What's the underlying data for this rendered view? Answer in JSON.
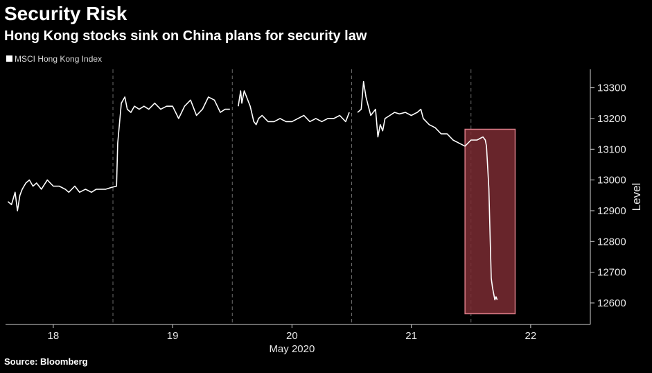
{
  "header": {
    "title": "Security Risk",
    "subtitle": "Hong Kong stocks sink on China plans for security law"
  },
  "footer": {
    "source": "Source: Bloomberg"
  },
  "colors": {
    "background": "#000000",
    "line": "#ffffff",
    "highlight_fill": "#7a2c33",
    "highlight_stroke": "#d87b86",
    "grid": "#6a6a6a"
  },
  "chart_data": {
    "type": "line",
    "legend": {
      "entries": [
        "MSCI Hong Kong Index"
      ],
      "placement": "top-left"
    },
    "xlabel": "May 2020",
    "ylabel": "Level",
    "x_tick_labels": [
      "18",
      "19",
      "20",
      "21",
      "22"
    ],
    "y_ticks": [
      12600,
      12700,
      12800,
      12900,
      13000,
      13100,
      13200,
      13300
    ],
    "ylim": [
      12530,
      13360
    ],
    "xlim": [
      17.6,
      22.5
    ],
    "grid": {
      "x": "dashed-vertical",
      "y": false
    },
    "highlight": {
      "x_range": [
        21.45,
        21.87
      ],
      "y_range": [
        12565,
        13165
      ]
    },
    "series": [
      {
        "name": "MSCI Hong Kong Index",
        "x": [
          17.62,
          17.65,
          17.68,
          17.7,
          17.72,
          17.74,
          17.77,
          17.8,
          17.83,
          17.86,
          17.9,
          17.95,
          18.0,
          18.05,
          18.1,
          18.13,
          18.18,
          18.22,
          18.27,
          18.32,
          18.36,
          18.4,
          18.44,
          18.48,
          18.53,
          18.54,
          18.57,
          18.6,
          18.62,
          18.65,
          18.68,
          18.72,
          18.76,
          18.8,
          18.85,
          18.9,
          18.95,
          19.0,
          19.05,
          19.1,
          19.15,
          19.2,
          19.25,
          19.3,
          19.35,
          19.4,
          19.44,
          19.48,
          19.55,
          19.57,
          19.58,
          19.6,
          19.62,
          19.65,
          19.68,
          19.7,
          19.72,
          19.75,
          19.8,
          19.85,
          19.9,
          19.95,
          20.0,
          20.05,
          20.1,
          20.15,
          20.2,
          20.25,
          20.3,
          20.35,
          20.4,
          20.45,
          20.48,
          20.55,
          20.58,
          20.6,
          20.62,
          20.64,
          20.66,
          20.7,
          20.72,
          20.74,
          20.76,
          20.78,
          20.82,
          20.86,
          20.9,
          20.95,
          21.0,
          21.05,
          21.08,
          21.1,
          21.15,
          21.2,
          21.25,
          21.3,
          21.35,
          21.4,
          21.45,
          21.5,
          21.55,
          21.6,
          21.62,
          21.63,
          21.64,
          21.65,
          21.66,
          21.67,
          21.68,
          21.69,
          21.7,
          21.71,
          21.72
        ],
        "y": [
          12930,
          12920,
          12960,
          12900,
          12950,
          12970,
          12990,
          13000,
          12980,
          12990,
          12970,
          13000,
          12980,
          12980,
          12970,
          12960,
          12980,
          12960,
          12970,
          12960,
          12970,
          12970,
          12970,
          12975,
          12980,
          13120,
          13250,
          13270,
          13230,
          13220,
          13240,
          13230,
          13240,
          13230,
          13250,
          13230,
          13240,
          13240,
          13200,
          13240,
          13260,
          13210,
          13230,
          13270,
          13260,
          13220,
          13230,
          13230,
          13240,
          13290,
          13250,
          13290,
          13270,
          13240,
          13190,
          13180,
          13200,
          13210,
          13190,
          13190,
          13200,
          13190,
          13190,
          13200,
          13210,
          13190,
          13200,
          13190,
          13200,
          13200,
          13210,
          13190,
          13220,
          13220,
          13230,
          13320,
          13270,
          13240,
          13210,
          13230,
          13140,
          13180,
          13160,
          13200,
          13210,
          13220,
          13215,
          13220,
          13210,
          13220,
          13230,
          13200,
          13180,
          13170,
          13150,
          13150,
          13130,
          13120,
          13110,
          13130,
          13130,
          13140,
          13130,
          13110,
          13040,
          12970,
          12820,
          12680,
          12650,
          12630,
          12610,
          12620,
          12610
        ]
      }
    ]
  }
}
